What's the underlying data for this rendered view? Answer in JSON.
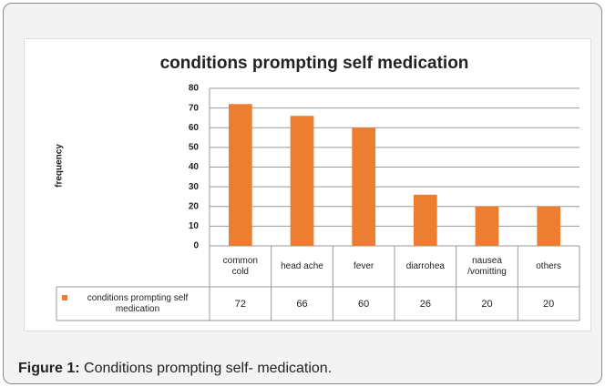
{
  "chart_data": {
    "type": "bar",
    "title": "conditions prompting self medication",
    "y_label": "frequency",
    "categories": [
      "common cold",
      "head ache",
      "fever",
      "diarrohea",
      "nausea /vomitting",
      "others"
    ],
    "series": [
      {
        "name": "conditions prompting self medication",
        "color": "#ed7d31",
        "values": [
          72,
          66,
          60,
          26,
          20,
          20
        ]
      }
    ],
    "ylim": [
      0,
      80
    ],
    "yticks": [
      0,
      10,
      20,
      30,
      40,
      50,
      60,
      70,
      80
    ],
    "grid": true
  },
  "caption": {
    "label": "Figure 1:",
    "text": "Conditions prompting self- medication."
  }
}
